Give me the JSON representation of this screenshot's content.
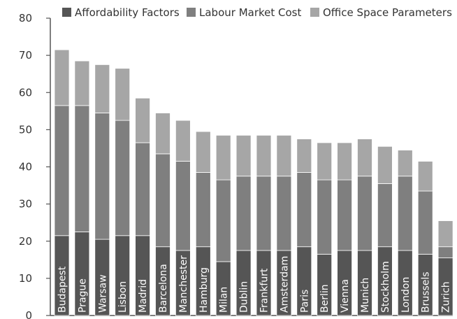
{
  "chart_data": {
    "type": "bar",
    "stacked": true,
    "categories": [
      "Budapest",
      "Prague",
      "Warsaw",
      "Lisbon",
      "Madrid",
      "Barcelona",
      "Manchester",
      "Hamburg",
      "Milan",
      "Dublin",
      "Frankfurt",
      "Amsterdam",
      "Paris",
      "Berlin",
      "Vienna",
      "Munich",
      "Stockholm",
      "London",
      "Brussels",
      "Zurich"
    ],
    "series": [
      {
        "name": "Affordability Factors",
        "color": "#555555",
        "values": [
          21.5,
          22.5,
          20.5,
          21.5,
          21.5,
          18.5,
          17.5,
          18.5,
          14.5,
          17.5,
          17.5,
          17.5,
          18.5,
          16.5,
          17.5,
          17.5,
          18.5,
          17.5,
          16.5,
          15.5
        ]
      },
      {
        "name": "Labour Market Cost",
        "color": "#7f7f7f",
        "values": [
          35,
          34,
          34,
          31,
          25,
          25,
          24,
          20,
          22,
          20,
          20,
          20,
          20,
          20,
          19,
          20,
          17,
          20,
          17,
          3
        ]
      },
      {
        "name": "Office Space Parameters",
        "color": "#a6a6a6",
        "values": [
          15,
          12,
          13,
          14,
          12,
          11,
          11,
          11,
          12,
          11,
          11,
          11,
          9,
          10,
          10,
          10,
          10,
          7,
          8,
          7
        ]
      }
    ],
    "title": "",
    "xlabel": "",
    "ylabel": "",
    "ylim": [
      0,
      80
    ],
    "yticks": [
      0,
      10,
      20,
      30,
      40,
      50,
      60,
      70,
      80
    ],
    "grid": false,
    "legend": "top-right",
    "axis_color": "#555555"
  }
}
